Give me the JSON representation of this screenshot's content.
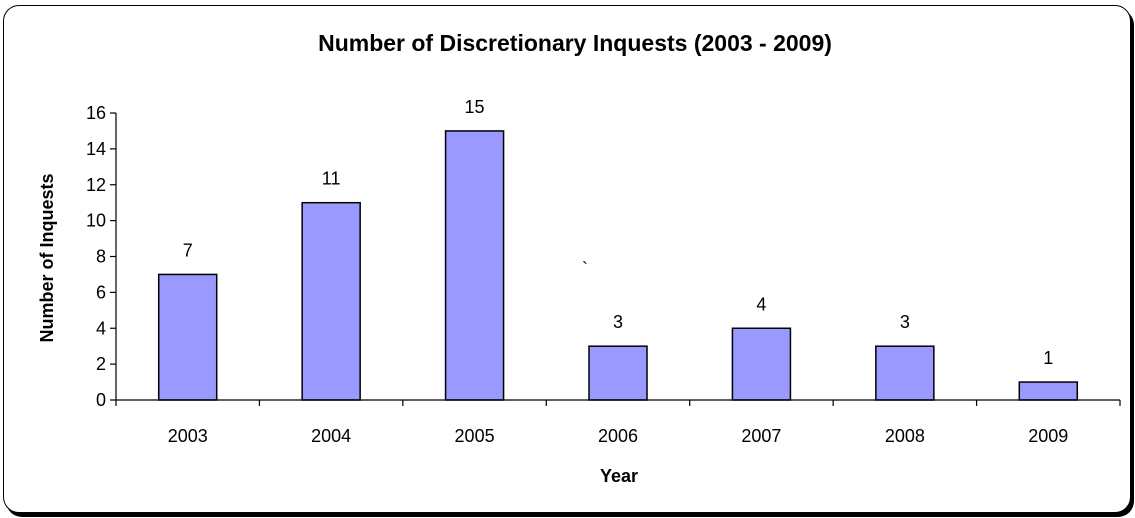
{
  "chart_data": {
    "type": "bar",
    "title": "Number of Discretionary Inquests (2003 - 2009)",
    "xlabel": "Year",
    "ylabel": "Number of Inquests",
    "categories": [
      "2003",
      "2004",
      "2005",
      "2006",
      "2007",
      "2008",
      "2009"
    ],
    "values": [
      7,
      11,
      15,
      3,
      4,
      3,
      1
    ],
    "ylim": [
      0,
      16
    ],
    "yticks": [
      0,
      2,
      4,
      6,
      8,
      10,
      12,
      14,
      16
    ],
    "grid": false,
    "legend": "none",
    "bar_color": "#9999ff",
    "stray_mark": "`"
  }
}
